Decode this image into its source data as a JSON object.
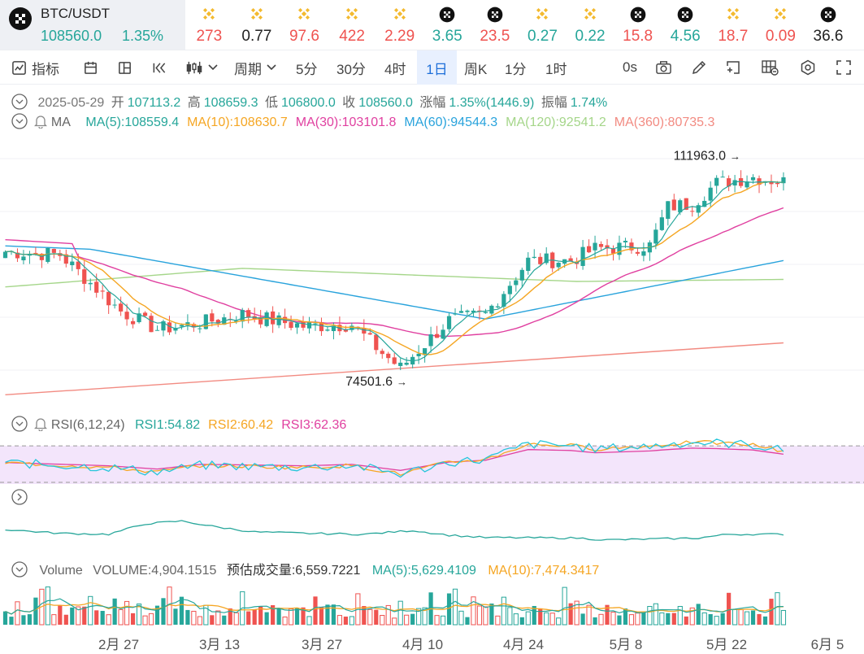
{
  "main_ticker": {
    "symbol": "BTC/USDT",
    "price": "108560.0",
    "change": "1.35%"
  },
  "tickers": [
    {
      "icon": "binance-coin-icon",
      "value": "273",
      "color": "#ef5350"
    },
    {
      "icon": "binance-coin-icon",
      "value": "0.77",
      "color": "#222222"
    },
    {
      "icon": "binance-coin-icon",
      "value": "97.6",
      "color": "#ef5350"
    },
    {
      "icon": "binance-coin-icon",
      "value": "422",
      "color": "#ef5350"
    },
    {
      "icon": "binance-coin-icon",
      "value": "2.29",
      "color": "#ef5350"
    },
    {
      "icon": "checker-logo-icon",
      "value": "3.65",
      "color": "#26a69a"
    },
    {
      "icon": "checker-logo-icon",
      "value": "23.5",
      "color": "#ef5350"
    },
    {
      "icon": "binance-coin-icon",
      "value": "0.27",
      "color": "#26a69a"
    },
    {
      "icon": "binance-coin-icon",
      "value": "0.22",
      "color": "#26a69a"
    },
    {
      "icon": "checker-logo-icon",
      "value": "15.8",
      "color": "#ef5350"
    },
    {
      "icon": "checker-logo-icon",
      "value": "4.56",
      "color": "#26a69a"
    },
    {
      "icon": "binance-coin-icon",
      "value": "18.7",
      "color": "#ef5350"
    },
    {
      "icon": "binance-coin-icon",
      "value": "0.09",
      "color": "#ef5350"
    },
    {
      "icon": "checker-logo-icon",
      "value": "36.6",
      "color": "#222222"
    }
  ],
  "toolbar": {
    "indicators": "指标",
    "period": "周期",
    "intervals": [
      "5分",
      "30分",
      "4时",
      "1日",
      "周K",
      "1分",
      "1时"
    ],
    "active_interval": "1日",
    "countdown": "0s"
  },
  "ohlc": {
    "date": "2025-05-29",
    "open_label": "开",
    "open": "107113.2",
    "high_label": "高",
    "high": "108659.3",
    "low_label": "低",
    "low": "106800.0",
    "close_label": "收",
    "close": "108560.0",
    "change_label": "涨幅",
    "change": "1.35%(1446.9)",
    "amp_label": "振幅",
    "amp": "1.74%"
  },
  "ma_row": {
    "label": "MA",
    "items": [
      {
        "text": "MA(5):108559.4",
        "color": "#26a69a"
      },
      {
        "text": "MA(10):108630.7",
        "color": "#f5a623"
      },
      {
        "text": "MA(30):103101.8",
        "color": "#e040a0"
      },
      {
        "text": "MA(60):94544.3",
        "color": "#29a3dc"
      },
      {
        "text": "MA(120):92541.2",
        "color": "#a5d68a"
      },
      {
        "text": "MA(360):80735.3",
        "color": "#f28b82"
      }
    ]
  },
  "annotations": {
    "high": "111963.0",
    "low": "74501.6"
  },
  "rsi_row": {
    "label": "RSI(6,12,24)",
    "items": [
      {
        "text": "RSI1:54.82",
        "color": "#26a69a"
      },
      {
        "text": "RSI2:60.42",
        "color": "#f5a623"
      },
      {
        "text": "RSI3:62.36",
        "color": "#e040a0"
      }
    ]
  },
  "volume_row": {
    "label": "Volume",
    "volume": "VOLUME:4,904.1515",
    "estimate": "预估成交量:6,559.7221",
    "ma5": "MA(5):5,629.4109",
    "ma10": "MA(10):7,474.3417"
  },
  "xaxis": [
    "2月 27",
    "3月 13",
    "3月 27",
    "4月 10",
    "4月 24",
    "5月 8",
    "5月 22",
    "6月 5"
  ],
  "colors": {
    "up": "#26a69a",
    "down": "#ef5350",
    "accent": "#1e6fd9"
  },
  "chart_data": {
    "type": "candlestick",
    "interval": "1日",
    "x": [
      "2月 27",
      "3月 13",
      "3月 27",
      "4月 10",
      "4月 24",
      "5月 8",
      "5月 22",
      "6月 5"
    ],
    "series": [
      {
        "name": "MA(5)",
        "last": 108559.4
      },
      {
        "name": "MA(10)",
        "last": 108630.7
      },
      {
        "name": "MA(30)",
        "last": 103101.8
      },
      {
        "name": "MA(60)",
        "last": 94544.3
      },
      {
        "name": "MA(120)",
        "last": 92541.2
      },
      {
        "name": "MA(360)",
        "last": 80735.3
      },
      {
        "name": "RSI1",
        "last": 54.82
      },
      {
        "name": "RSI2",
        "last": 60.42
      },
      {
        "name": "RSI3",
        "last": 62.36
      },
      {
        "name": "VOLUME",
        "last": 4904.1515
      },
      {
        "name": "预估成交量",
        "last": 6559.7221
      },
      {
        "name": "MA(5)",
        "last": 5629.4109
      },
      {
        "name": "MA(10)",
        "last": 7474.3417
      }
    ],
    "high_marker": 111963.0,
    "low_marker": 74501.6,
    "latest": {
      "date": "2025-05-29",
      "open": 107113.2,
      "high": 108659.3,
      "low": 106800.0,
      "close": 108560.0
    },
    "price_waypoints": [
      [
        1,
        96000
      ],
      [
        10,
        95500
      ],
      [
        20,
        86000
      ],
      [
        26,
        83000
      ],
      [
        33,
        84000
      ],
      [
        40,
        85500
      ],
      [
        50,
        83500
      ],
      [
        58,
        83800
      ],
      [
        63,
        79000
      ],
      [
        66,
        76500
      ],
      [
        74,
        84500
      ],
      [
        80,
        85500
      ],
      [
        87,
        94500
      ],
      [
        94,
        94500
      ],
      [
        98,
        96500
      ],
      [
        107,
        97000
      ],
      [
        110,
        103500
      ],
      [
        114,
        104000
      ],
      [
        118,
        107500
      ],
      [
        124,
        108500
      ],
      [
        129,
        107700
      ]
    ],
    "rsi_waypoints": [
      [
        1,
        52
      ],
      [
        18,
        45
      ],
      [
        26,
        38
      ],
      [
        33,
        48
      ],
      [
        40,
        47
      ],
      [
        50,
        45
      ],
      [
        58,
        48
      ],
      [
        63,
        40
      ],
      [
        66,
        35
      ],
      [
        74,
        53
      ],
      [
        80,
        57
      ],
      [
        87,
        80
      ],
      [
        94,
        78
      ],
      [
        98,
        73
      ],
      [
        107,
        77
      ],
      [
        110,
        80
      ],
      [
        114,
        83
      ],
      [
        118,
        82
      ],
      [
        124,
        79
      ],
      [
        129,
        70
      ]
    ],
    "third_pane_waypoints": [
      [
        1,
        0.5
      ],
      [
        10,
        0.42
      ],
      [
        18,
        0.4
      ],
      [
        24,
        0.62
      ],
      [
        30,
        0.68
      ],
      [
        36,
        0.55
      ],
      [
        42,
        0.45
      ],
      [
        50,
        0.42
      ],
      [
        60,
        0.4
      ],
      [
        68,
        0.48
      ],
      [
        74,
        0.38
      ],
      [
        80,
        0.33
      ],
      [
        95,
        0.32
      ],
      [
        100,
        0.28
      ],
      [
        108,
        0.3
      ],
      [
        115,
        0.32
      ],
      [
        120,
        0.4
      ],
      [
        129,
        0.4
      ]
    ]
  }
}
